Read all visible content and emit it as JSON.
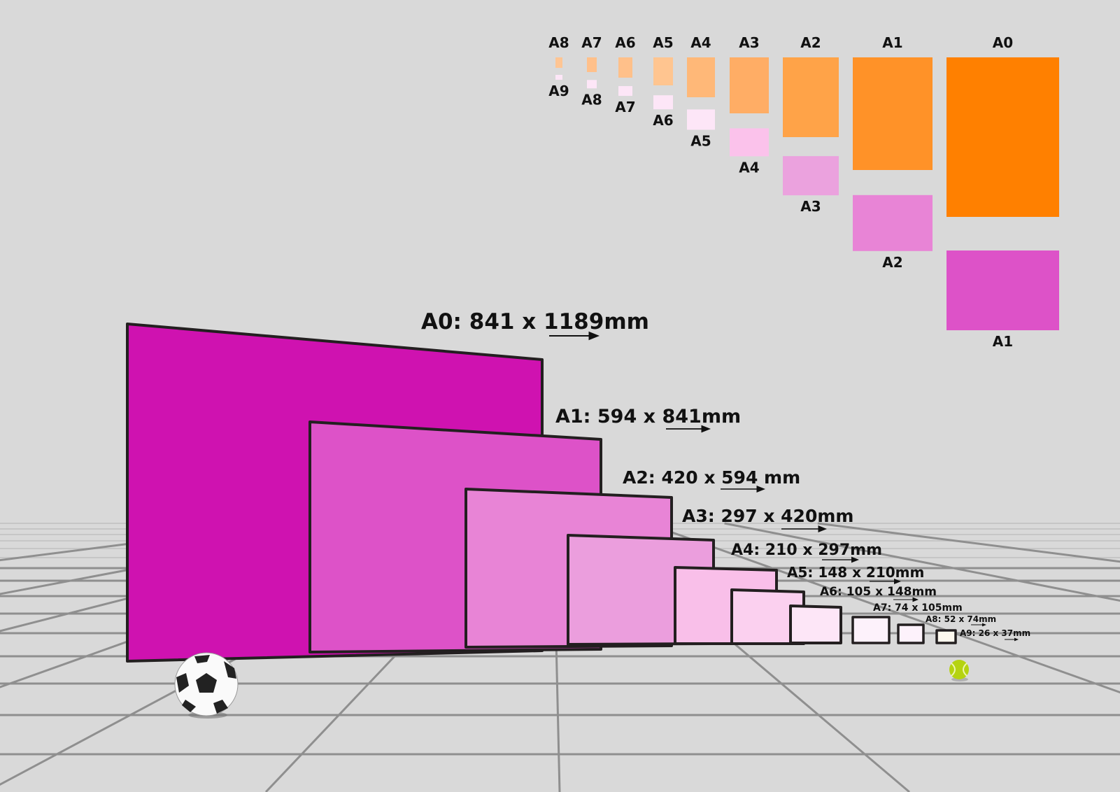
{
  "colors": {
    "background": "#d9d9d9",
    "a0": "#cf12b0",
    "a1": "#dd52c8",
    "a2": "#e884d6",
    "a3": "#eb9edd",
    "a4": "#f9bfe9",
    "a5": "#fbd0ef",
    "a6": "#fde6f7",
    "a7": "#fdf2fb",
    "a8": "#fdf2fb",
    "a9": "#fdf8ee",
    "orange": "#ff8000"
  },
  "chart": {
    "columns": [
      {
        "top": "A8",
        "bottom": "A9",
        "top_color": "#ffc593",
        "bottom_color": "#fde6f7"
      },
      {
        "top": "A7",
        "bottom": "A8",
        "top_color": "#ffc08a",
        "bottom_color": "#fde6f7"
      },
      {
        "top": "A6",
        "bottom": "A7",
        "top_color": "#ffc08a",
        "bottom_color": "#fde6f7"
      },
      {
        "top": "A5",
        "bottom": "A6",
        "top_color": "#ffc590",
        "bottom_color": "#fde6f7"
      },
      {
        "top": "A4",
        "bottom": "A5",
        "top_color": "#ffb878",
        "bottom_color": "#fde6f7"
      },
      {
        "top": "A3",
        "bottom": "A4",
        "top_color": "#ffad65",
        "bottom_color": "#fbc2eb"
      },
      {
        "top": "A2",
        "bottom": "A3",
        "top_color": "#ffa348",
        "bottom_color": "#eba2de"
      },
      {
        "top": "A1",
        "bottom": "A2",
        "top_color": "#ff9228",
        "bottom_color": "#e884d6"
      },
      {
        "top": "A0",
        "bottom": "A1",
        "top_color": "#ff8000",
        "bottom_color": "#dd52c8"
      }
    ]
  },
  "panels": [
    {
      "label": "A0: 841 x 1189mm"
    },
    {
      "label": "A1: 594 x 841mm"
    },
    {
      "label": "A2: 420 x 594 mm"
    },
    {
      "label": "A3: 297 x 420mm"
    },
    {
      "label": "A4: 210 x 297mm"
    },
    {
      "label": "A5: 148 x 210mm"
    },
    {
      "label": "A6: 105 x 148mm"
    },
    {
      "label": "A7: 74 x 105mm"
    },
    {
      "label": "A8: 52 x 74mm"
    },
    {
      "label": "A9: 26 x 37mm"
    }
  ]
}
